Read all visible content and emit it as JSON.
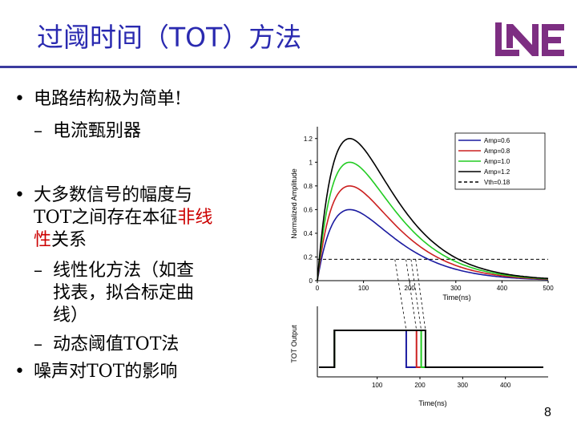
{
  "slide": {
    "title": "过阈时间（TOT）方法",
    "page_number": "8",
    "bullets": [
      {
        "bullet": "•",
        "text": "电路结构极为简单!"
      },
      {
        "bullet": "–",
        "text": "电流甄别器"
      },
      {
        "bullet": "•",
        "line1": "大多数信号的幅度与",
        "line2a": "TOT之间存在本征",
        "line2b": "非线",
        "line3a": "性",
        "line3b": "关系"
      },
      {
        "bullet": "–",
        "line1": "线性化方法（如查",
        "line2": "找表，拟合标定曲",
        "line3": "线）"
      },
      {
        "bullet": "–",
        "text": "动态阈值TOT法"
      },
      {
        "bullet": "•",
        "text": "噪声对TOT的影响"
      }
    ]
  },
  "chart_data": [
    {
      "type": "line",
      "ylabel": "Normalized Amplitude",
      "xlabel": "Time(ns)",
      "xlim": [
        0,
        500
      ],
      "ylim": [
        0,
        1.3
      ],
      "x_ticks": [
        "0",
        "100",
        "200",
        "300",
        "400",
        "500"
      ],
      "y_ticks": [
        "0",
        "0.2",
        "0.4",
        "0.6",
        "0.8",
        "1",
        "1.2"
      ],
      "threshold": 0.18,
      "series": [
        {
          "name": "Amp=0.6",
          "peak": 0.6,
          "color": "#1a1aa0"
        },
        {
          "name": "Amp=0.8",
          "peak": 0.8,
          "color": "#cc2020"
        },
        {
          "name": "Amp=1.0",
          "peak": 1.0,
          "color": "#22cc22"
        },
        {
          "name": "Amp=1.2",
          "peak": 1.2,
          "color": "#000000"
        },
        {
          "name": "Vth=0.18",
          "dashed": true,
          "color": "#000000"
        }
      ],
      "crossing_times_ns": [
        168,
        192,
        203,
        213
      ]
    },
    {
      "type": "line",
      "ylabel": "TOT Output",
      "xlabel": "Time(ns)",
      "x_ticks": [
        "100",
        "200",
        "300",
        "400"
      ],
      "pulses": [
        {
          "series": "Amp=0.6",
          "start": 0,
          "end": 168,
          "color": "#1a1aa0"
        },
        {
          "series": "Amp=0.8",
          "start": 0,
          "end": 192,
          "color": "#cc2020"
        },
        {
          "series": "Amp=1.0",
          "start": 0,
          "end": 203,
          "color": "#22cc22"
        },
        {
          "series": "Amp=1.2",
          "start": 0,
          "end": 213,
          "color": "#000000"
        }
      ]
    }
  ]
}
